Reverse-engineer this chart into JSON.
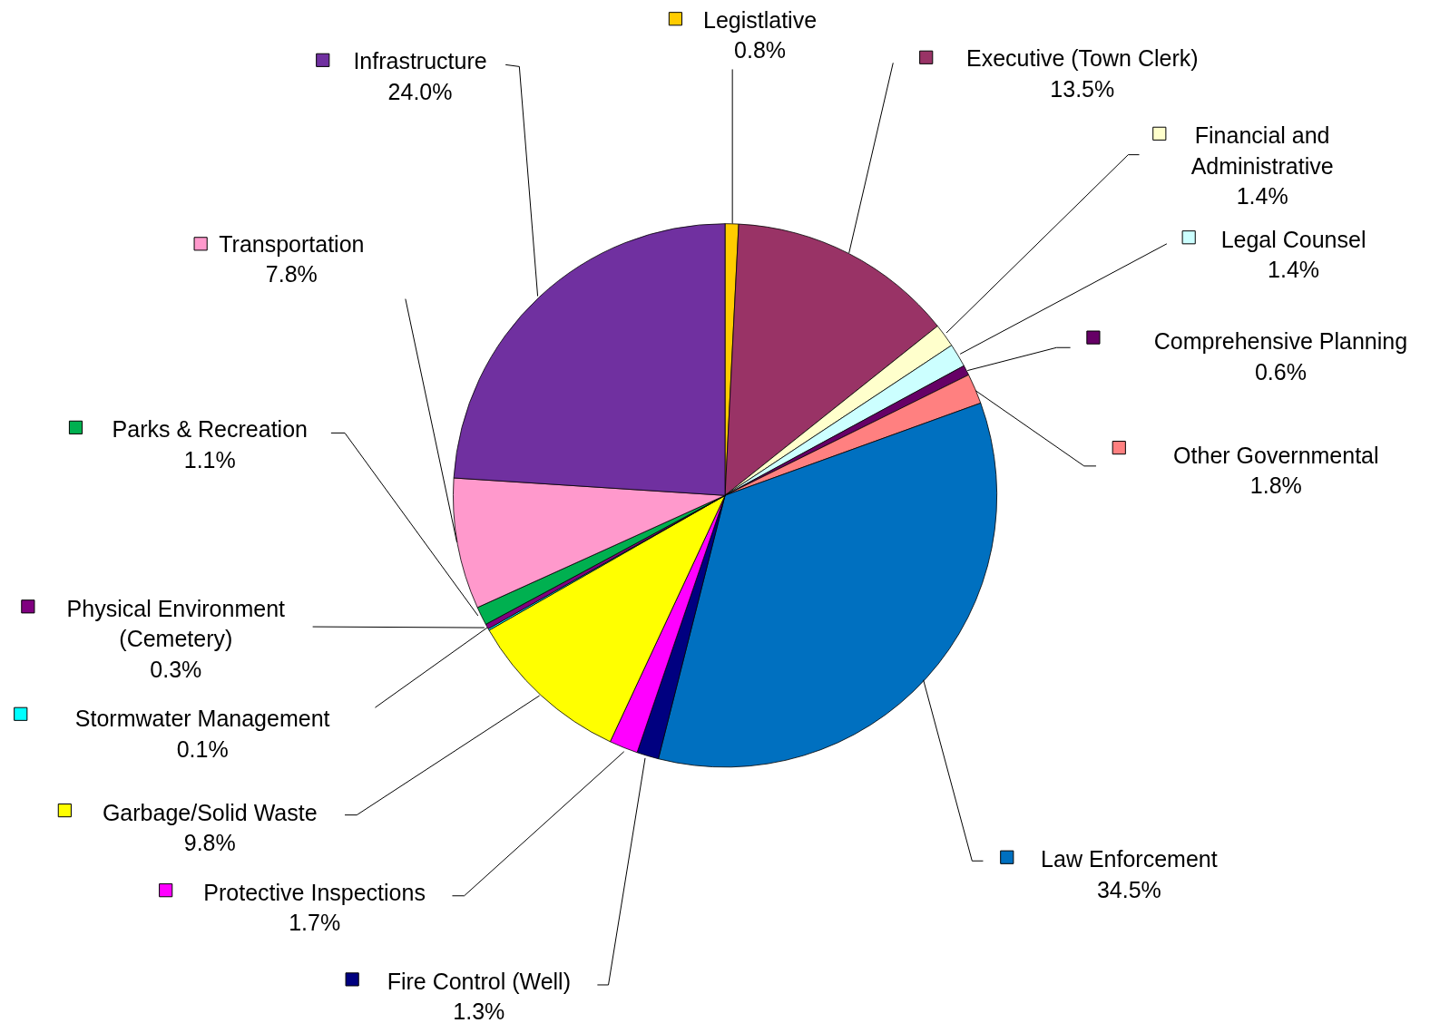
{
  "chart_data": {
    "type": "pie",
    "categories": [
      "Legistlative",
      "Executive (Town Clerk)",
      "Financial and Administrative",
      "Legal Counsel",
      "Comprehensive Planning",
      "Other Governmental",
      "Law Enforcement",
      "Fire Control (Well)",
      "Protective Inspections",
      "Garbage/Solid Waste",
      "Stormwater Management",
      "Physical Environment (Cemetery)",
      "Parks & Recreation",
      "Transportation",
      "Infrastructure"
    ],
    "values": [
      0.8,
      13.5,
      1.4,
      1.4,
      0.6,
      1.8,
      34.5,
      1.3,
      1.7,
      9.8,
      0.1,
      0.3,
      1.1,
      7.8,
      24.0
    ],
    "value_labels": [
      "0.8%",
      "13.5%",
      "1.4%",
      "1.4%",
      "0.6%",
      "1.8%",
      "34.5%",
      "1.3%",
      "1.7%",
      "9.8%",
      "0.1%",
      "0.3%",
      "1.1%",
      "7.8%",
      "24.0%"
    ],
    "colors": [
      "#ffcc00",
      "#993366",
      "#ffffcc",
      "#ccffff",
      "#660066",
      "#ff8080",
      "#0070c0",
      "#000080",
      "#ff00ff",
      "#ffff00",
      "#00ffff",
      "#800080",
      "#00b050",
      "#ff99cc",
      "#7030a0"
    ],
    "legend": "right"
  }
}
